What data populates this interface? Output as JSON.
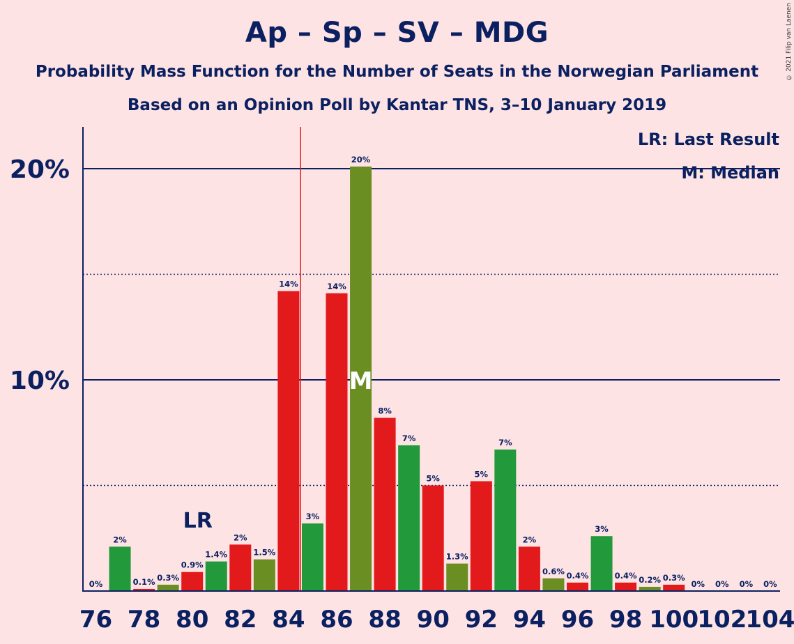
{
  "title": "Ap – Sp – SV – MDG",
  "subtitle": "Probability Mass Function for the Number of Seats in the Norwegian Parliament",
  "subtitle2": "Based on an Opinion Poll by Kantar TNS, 3–10 January 2019",
  "copyright": "© 2021 Filip van Laenen",
  "legend": {
    "last_result": "LR: Last Result",
    "median": "M: Median"
  },
  "chart_data": {
    "type": "bar",
    "x": [
      76,
      77,
      78,
      79,
      80,
      81,
      82,
      83,
      84,
      85,
      86,
      87,
      88,
      89,
      90,
      91,
      92,
      93,
      94,
      95,
      96,
      97,
      98,
      99,
      100,
      101,
      102,
      103,
      104
    ],
    "values": [
      0,
      2.1,
      0.1,
      0.3,
      0.9,
      1.4,
      2.2,
      1.5,
      14.2,
      3.2,
      14.1,
      20.1,
      8.2,
      6.9,
      5.0,
      1.3,
      5.2,
      6.7,
      2.1,
      0.6,
      0.4,
      2.6,
      0.4,
      0.2,
      0.3,
      0,
      0,
      0,
      0
    ],
    "labels": [
      "0%",
      "2%",
      "0.1%",
      "0.3%",
      "0.9%",
      "1.4%",
      "2%",
      "1.5%",
      "14%",
      "3%",
      "14%",
      "20%",
      "8%",
      "7%",
      "5%",
      "1.3%",
      "5%",
      "7%",
      "2%",
      "0.6%",
      "0.4%",
      "3%",
      "0.4%",
      "0.2%",
      "0.3%",
      "0%",
      "0%",
      "0%",
      "0%"
    ],
    "colors": [
      "#e31a1c",
      "#229a3c",
      "#e31a1c",
      "#6b8e23",
      "#e31a1c",
      "#229a3c",
      "#e31a1c",
      "#6b8e23",
      "#e31a1c",
      "#229a3c",
      "#e31a1c",
      "#6b8e23",
      "#e31a1c",
      "#229a3c",
      "#e31a1c",
      "#6b8e23",
      "#e31a1c",
      "#229a3c",
      "#e31a1c",
      "#6b8e23",
      "#e31a1c",
      "#229a3c",
      "#e31a1c",
      "#6b8e23",
      "#e31a1c",
      "#229a3c",
      "#e31a1c",
      "#6b8e23",
      "#e31a1c"
    ],
    "xticks": [
      76,
      78,
      80,
      82,
      84,
      86,
      88,
      90,
      92,
      94,
      96,
      98,
      100,
      102,
      104
    ],
    "yticks": [
      {
        "value": 10,
        "label": "10%"
      },
      {
        "value": 20,
        "label": "20%"
      }
    ],
    "dotted_gridlines": [
      5,
      15
    ],
    "ylim": [
      0,
      22
    ],
    "last_result": 85,
    "last_result_label": "LR",
    "median": 87,
    "median_label": "M",
    "legend_position": "top-right",
    "axis_color": "#0b2060",
    "lr_line_color": "#e31a1c"
  }
}
